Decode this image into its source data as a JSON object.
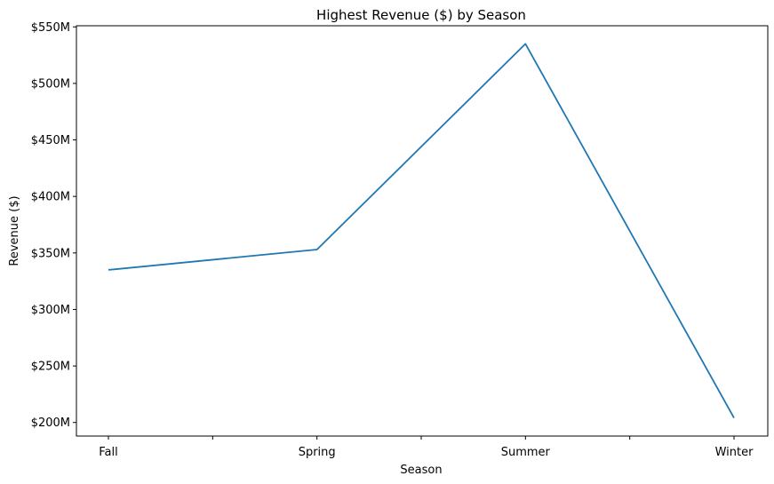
{
  "chart_data": {
    "type": "line",
    "title": "Highest Revenue ($) by Season",
    "xlabel": "Season",
    "ylabel": "Revenue ($)",
    "categories": [
      "Fall",
      "Spring",
      "Summer",
      "Winter"
    ],
    "series": [
      {
        "values": [
          335000000,
          353000000,
          535000000,
          204000000
        ],
        "color": "#1f77b4"
      }
    ],
    "ylim": [
      188000000,
      551000000
    ],
    "yticks": [
      200000000,
      250000000,
      300000000,
      350000000,
      400000000,
      450000000,
      500000000,
      550000000
    ],
    "ytick_labels": [
      "$200M",
      "$250M",
      "$300M",
      "$350M",
      "$400M",
      "$450M",
      "$500M",
      "$550M"
    ],
    "minor_xticks": [
      0.5,
      1.5,
      2.5
    ],
    "grid": false,
    "legend": "none"
  }
}
